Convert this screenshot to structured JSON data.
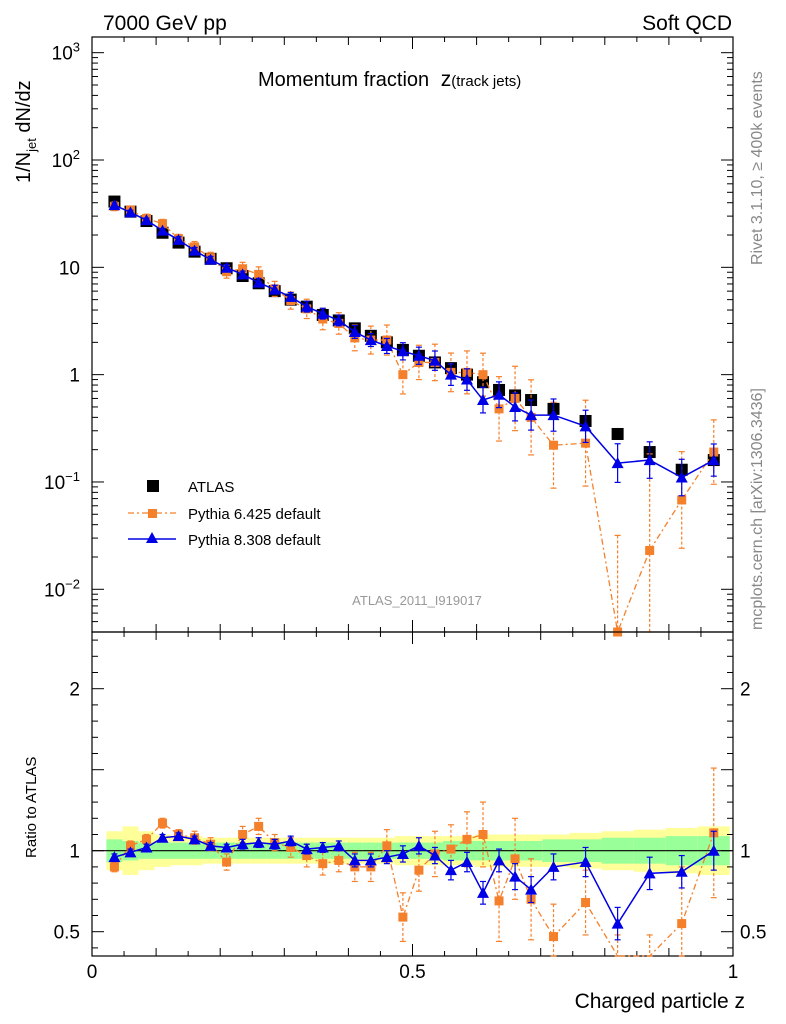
{
  "header": {
    "left": "7000 GeV pp",
    "right": "Soft QCD"
  },
  "side": {
    "rivet": "Rivet 3.1.10, ≥ 400k events",
    "mcplots": "mcplots.cern.ch [arXiv:1306.3436]"
  },
  "chart_data": [
    {
      "type": "scatter",
      "title": "Momentum fraction",
      "title_symbol": "z",
      "title_sub": "(track jets)",
      "ylabel_main": "1/N",
      "ylabel_sub": "jet",
      "ylabel_tail": " dN/dz",
      "analysis_label": "ATLAS_2011_I919017",
      "yscale": "log",
      "xlim": [
        0,
        1
      ],
      "ylim": [
        0.004,
        1400
      ],
      "ytick_labels": [
        {
          "v": 0.01,
          "base": "10",
          "exp": "−2"
        },
        {
          "v": 0.1,
          "base": "10",
          "exp": "−1"
        },
        {
          "v": 1,
          "base": "1",
          "exp": ""
        },
        {
          "v": 10,
          "base": "10",
          "exp": ""
        },
        {
          "v": 100,
          "base": "10",
          "exp": "2"
        },
        {
          "v": 1000,
          "base": "10",
          "exp": "3"
        }
      ],
      "legend_position": "bottom-left",
      "series": [
        {
          "name": "ATLAS",
          "color": "#000000",
          "marker": "square",
          "x": [
            0.035,
            0.06,
            0.085,
            0.11,
            0.135,
            0.16,
            0.185,
            0.21,
            0.235,
            0.26,
            0.285,
            0.31,
            0.335,
            0.36,
            0.385,
            0.41,
            0.435,
            0.46,
            0.485,
            0.51,
            0.535,
            0.56,
            0.585,
            0.61,
            0.635,
            0.66,
            0.685,
            0.72,
            0.77,
            0.82,
            0.87,
            0.92,
            0.97
          ],
          "y": [
            41,
            33,
            27,
            21,
            17,
            14,
            12,
            9.8,
            8.3,
            7.1,
            6.0,
            5.0,
            4.3,
            3.6,
            3.2,
            2.7,
            2.3,
            2.0,
            1.7,
            1.5,
            1.3,
            1.15,
            1.0,
            0.85,
            0.72,
            0.64,
            0.58,
            0.48,
            0.37,
            0.28,
            0.19,
            0.13,
            0.16
          ]
        },
        {
          "name": "Pythia 6.425 default",
          "color": "#f5802b",
          "marker": "square",
          "x": [
            0.035,
            0.06,
            0.085,
            0.11,
            0.135,
            0.16,
            0.185,
            0.21,
            0.235,
            0.26,
            0.285,
            0.31,
            0.335,
            0.36,
            0.385,
            0.41,
            0.435,
            0.46,
            0.485,
            0.51,
            0.535,
            0.56,
            0.585,
            0.61,
            0.635,
            0.66,
            0.685,
            0.72,
            0.77,
            0.82,
            0.87,
            0.92,
            0.97
          ],
          "y": [
            37,
            34,
            28.5,
            25.5,
            18.5,
            15.5,
            12.3,
            9.1,
            9.7,
            8.6,
            6.3,
            4.9,
            4.1,
            3.3,
            3.0,
            2.2,
            2.1,
            2.1,
            1.0,
            1.3,
            1.3,
            1.05,
            1.05,
            1.0,
            0.48,
            0.6,
            0.4,
            0.22,
            0.23,
            0.004,
            0.023,
            0.068,
            0.19
          ],
          "yerr": [
            0.04,
            0.04,
            0.04,
            0.04,
            0.04,
            0.05,
            0.05,
            0.06,
            0.06,
            0.07,
            0.07,
            0.08,
            0.09,
            0.1,
            0.1,
            0.12,
            0.13,
            0.14,
            0.18,
            0.16,
            0.17,
            0.18,
            0.2,
            0.2,
            0.3,
            0.3,
            0.35,
            0.4,
            0.4,
            0.9,
            0.9,
            0.45,
            0.3
          ]
        },
        {
          "name": "Pythia 8.308 default",
          "color": "#0000e6",
          "marker": "triangle",
          "x": [
            0.035,
            0.06,
            0.085,
            0.11,
            0.135,
            0.16,
            0.185,
            0.21,
            0.235,
            0.26,
            0.285,
            0.31,
            0.335,
            0.36,
            0.385,
            0.41,
            0.435,
            0.46,
            0.485,
            0.51,
            0.535,
            0.56,
            0.585,
            0.61,
            0.635,
            0.66,
            0.685,
            0.72,
            0.77,
            0.82,
            0.87,
            0.92,
            0.97
          ],
          "y": [
            38,
            32.5,
            27.5,
            22,
            18,
            14.3,
            11.8,
            9.9,
            8.6,
            7.2,
            6.2,
            5.3,
            4.3,
            3.7,
            3.2,
            2.5,
            2.1,
            1.85,
            1.65,
            1.5,
            1.35,
            1.0,
            0.9,
            0.58,
            0.65,
            0.5,
            0.42,
            0.42,
            0.33,
            0.15,
            0.16,
            0.11,
            0.16
          ],
          "yerr": [
            0.02,
            0.02,
            0.02,
            0.02,
            0.03,
            0.03,
            0.03,
            0.03,
            0.03,
            0.04,
            0.04,
            0.04,
            0.05,
            0.05,
            0.05,
            0.06,
            0.06,
            0.07,
            0.08,
            0.08,
            0.09,
            0.1,
            0.1,
            0.12,
            0.12,
            0.13,
            0.14,
            0.15,
            0.15,
            0.18,
            0.17,
            0.17,
            0.15
          ]
        }
      ]
    },
    {
      "type": "scatter",
      "ylabel": "Ratio to ATLAS",
      "xlabel": "Charged particle z",
      "xlim": [
        0,
        1
      ],
      "ylim": [
        0.35,
        2.35
      ],
      "xtick_labels": [
        {
          "v": 0,
          "label": "0"
        },
        {
          "v": 0.5,
          "label": "0.5"
        },
        {
          "v": 1,
          "label": "1"
        }
      ],
      "ytick_labels": [
        {
          "v": 0.5,
          "label": "0.5"
        },
        {
          "v": 1,
          "label": "1"
        },
        {
          "v": 2,
          "label": "2"
        }
      ],
      "band_inner_color": "#99ff99",
      "band_outer_color": "#ffff99",
      "band_inner": [
        0.07,
        0.06,
        0.05,
        0.05,
        0.05,
        0.05,
        0.05,
        0.05,
        0.05,
        0.05,
        0.05,
        0.05,
        0.05,
        0.05,
        0.05,
        0.05,
        0.05,
        0.05,
        0.05,
        0.05,
        0.05,
        0.06,
        0.06,
        0.06,
        0.06,
        0.06,
        0.06,
        0.07,
        0.07,
        0.08,
        0.08,
        0.09,
        0.09
      ],
      "band_outer": [
        0.12,
        0.15,
        0.12,
        0.1,
        0.09,
        0.09,
        0.08,
        0.08,
        0.08,
        0.08,
        0.08,
        0.08,
        0.08,
        0.08,
        0.08,
        0.08,
        0.08,
        0.08,
        0.09,
        0.09,
        0.09,
        0.09,
        0.09,
        0.1,
        0.1,
        0.1,
        0.1,
        0.1,
        0.11,
        0.12,
        0.13,
        0.14,
        0.15
      ],
      "series": [
        {
          "name": "Pythia 6.425 default",
          "color": "#f5802b",
          "y": [
            0.9,
            1.03,
            1.07,
            1.17,
            1.1,
            1.08,
            1.04,
            0.93,
            1.1,
            1.15,
            1.05,
            1.02,
            0.97,
            0.92,
            0.94,
            0.9,
            0.9,
            1.03,
            0.59,
            0.88,
            0.98,
            1.01,
            1.07,
            1.1,
            0.69,
            0.95,
            0.7,
            0.47,
            0.68,
            0.28,
            0.28,
            0.55,
            1.11
          ],
          "yerr": [
            0.03,
            0.03,
            0.03,
            0.03,
            0.03,
            0.04,
            0.04,
            0.05,
            0.05,
            0.05,
            0.05,
            0.06,
            0.07,
            0.07,
            0.07,
            0.09,
            0.09,
            0.1,
            0.15,
            0.13,
            0.14,
            0.15,
            0.17,
            0.2,
            0.25,
            0.25,
            0.25,
            0.2,
            0.2,
            0.2,
            0.2,
            0.35,
            0.4
          ]
        },
        {
          "name": "Pythia 8.308 default",
          "color": "#0000e6",
          "y": [
            0.96,
            0.99,
            1.02,
            1.08,
            1.09,
            1.07,
            1.03,
            1.02,
            1.04,
            1.05,
            1.04,
            1.06,
            1.01,
            1.02,
            1.03,
            0.94,
            0.94,
            0.96,
            0.98,
            1.03,
            0.97,
            0.88,
            0.93,
            0.74,
            0.94,
            0.84,
            0.76,
            0.9,
            0.93,
            0.55,
            0.86,
            0.87,
            1.0
          ],
          "yerr": [
            0.02,
            0.02,
            0.02,
            0.02,
            0.02,
            0.02,
            0.02,
            0.02,
            0.03,
            0.03,
            0.03,
            0.03,
            0.03,
            0.03,
            0.03,
            0.04,
            0.04,
            0.04,
            0.05,
            0.05,
            0.05,
            0.06,
            0.06,
            0.07,
            0.07,
            0.08,
            0.08,
            0.08,
            0.09,
            0.1,
            0.1,
            0.1,
            0.12
          ]
        }
      ]
    }
  ]
}
